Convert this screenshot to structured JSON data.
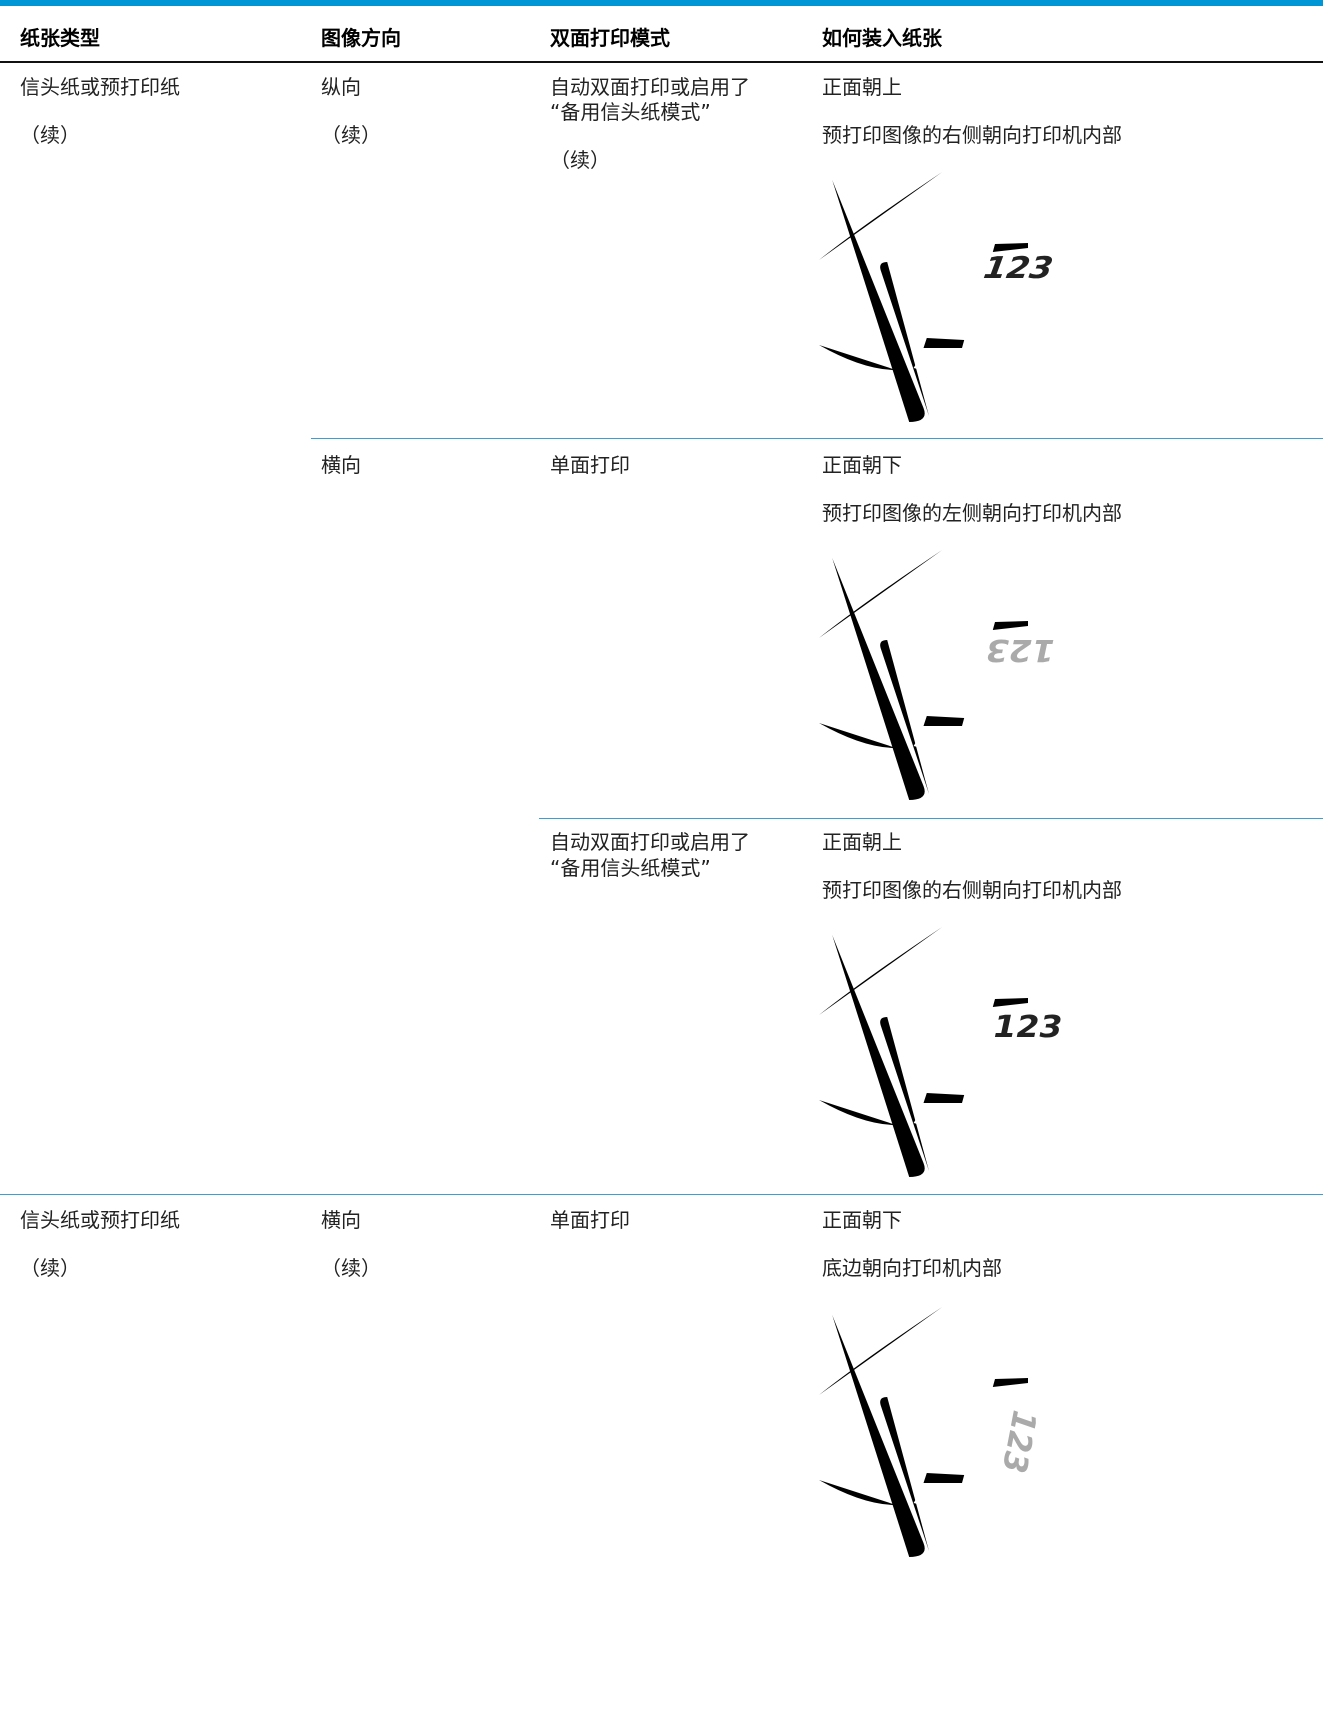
{
  "header": {
    "columns": [
      "纸张类型",
      "图像方向",
      "双面打印模式",
      "如何装入纸张"
    ]
  },
  "rows": [
    {
      "paper_type": [
        "信头纸或预打印纸",
        "（续）"
      ],
      "orientation": [
        "纵向",
        "（续）"
      ],
      "duplex_mode": [
        "自动双面打印或启用了",
        "“备用信头纸模式”",
        "（续）"
      ],
      "loading": [
        "正面朝上",
        "预打印图像的右侧朝向打印机内部"
      ],
      "image_label": "123"
    },
    {
      "orientation": [
        "横向"
      ],
      "duplex_mode": [
        "单面打印"
      ],
      "loading": [
        "正面朝下",
        "预打印图像的左侧朝向打印机内部"
      ],
      "image_label": "123"
    },
    {
      "duplex_mode": [
        "自动双面打印或启用了",
        "“备用信头纸模式”"
      ],
      "loading": [
        "正面朝上",
        "预打印图像的右侧朝向打印机内部"
      ],
      "image_label": "123"
    },
    {
      "paper_type": [
        "信头纸或预打印纸",
        "（续）"
      ],
      "orientation": [
        "横向",
        "（续）"
      ],
      "duplex_mode": [
        "单面打印"
      ],
      "loading": [
        "正面朝下",
        "底边朝向打印机内部"
      ],
      "image_label": "123"
    }
  ]
}
